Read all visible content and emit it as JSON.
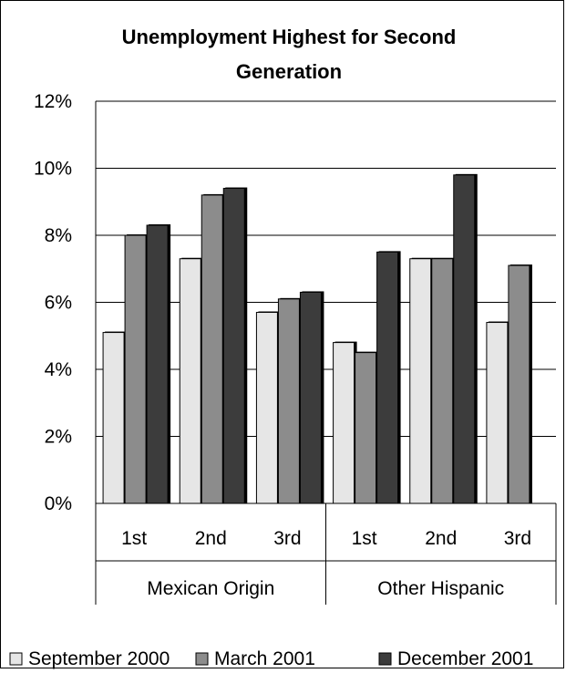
{
  "chart_data": {
    "type": "bar",
    "title": "Unemployment Highest for Second Generation",
    "title_lines": [
      "Unemployment Highest for Second",
      "Generation"
    ],
    "groups": [
      {
        "label": "Mexican Origin",
        "categories": [
          "1st",
          "2nd",
          "3rd"
        ]
      },
      {
        "label": "Other Hispanic",
        "categories": [
          "1st",
          "2nd",
          "3rd"
        ]
      }
    ],
    "categories": [
      "1st",
      "2nd",
      "3rd",
      "1st",
      "2nd",
      "3rd"
    ],
    "series": [
      {
        "name": "September 2000",
        "color": "#e6e6e6",
        "values": [
          5.1,
          7.3,
          5.7,
          4.8,
          7.3,
          5.4
        ]
      },
      {
        "name": "March 2001",
        "color": "#8c8c8c",
        "values": [
          8.0,
          9.2,
          6.1,
          4.5,
          7.3,
          7.1
        ]
      },
      {
        "name": "December 2001",
        "color": "#3c3c3c",
        "values": [
          8.3,
          9.4,
          6.3,
          7.5,
          9.8,
          null
        ]
      }
    ],
    "ylim": [
      0,
      12
    ],
    "yticks": [
      0,
      2,
      4,
      6,
      8,
      10,
      12
    ],
    "ytick_labels": [
      "0%",
      "2%",
      "4%",
      "6%",
      "8%",
      "10%",
      "12%"
    ],
    "grid": true,
    "legend_position": "bottom"
  }
}
